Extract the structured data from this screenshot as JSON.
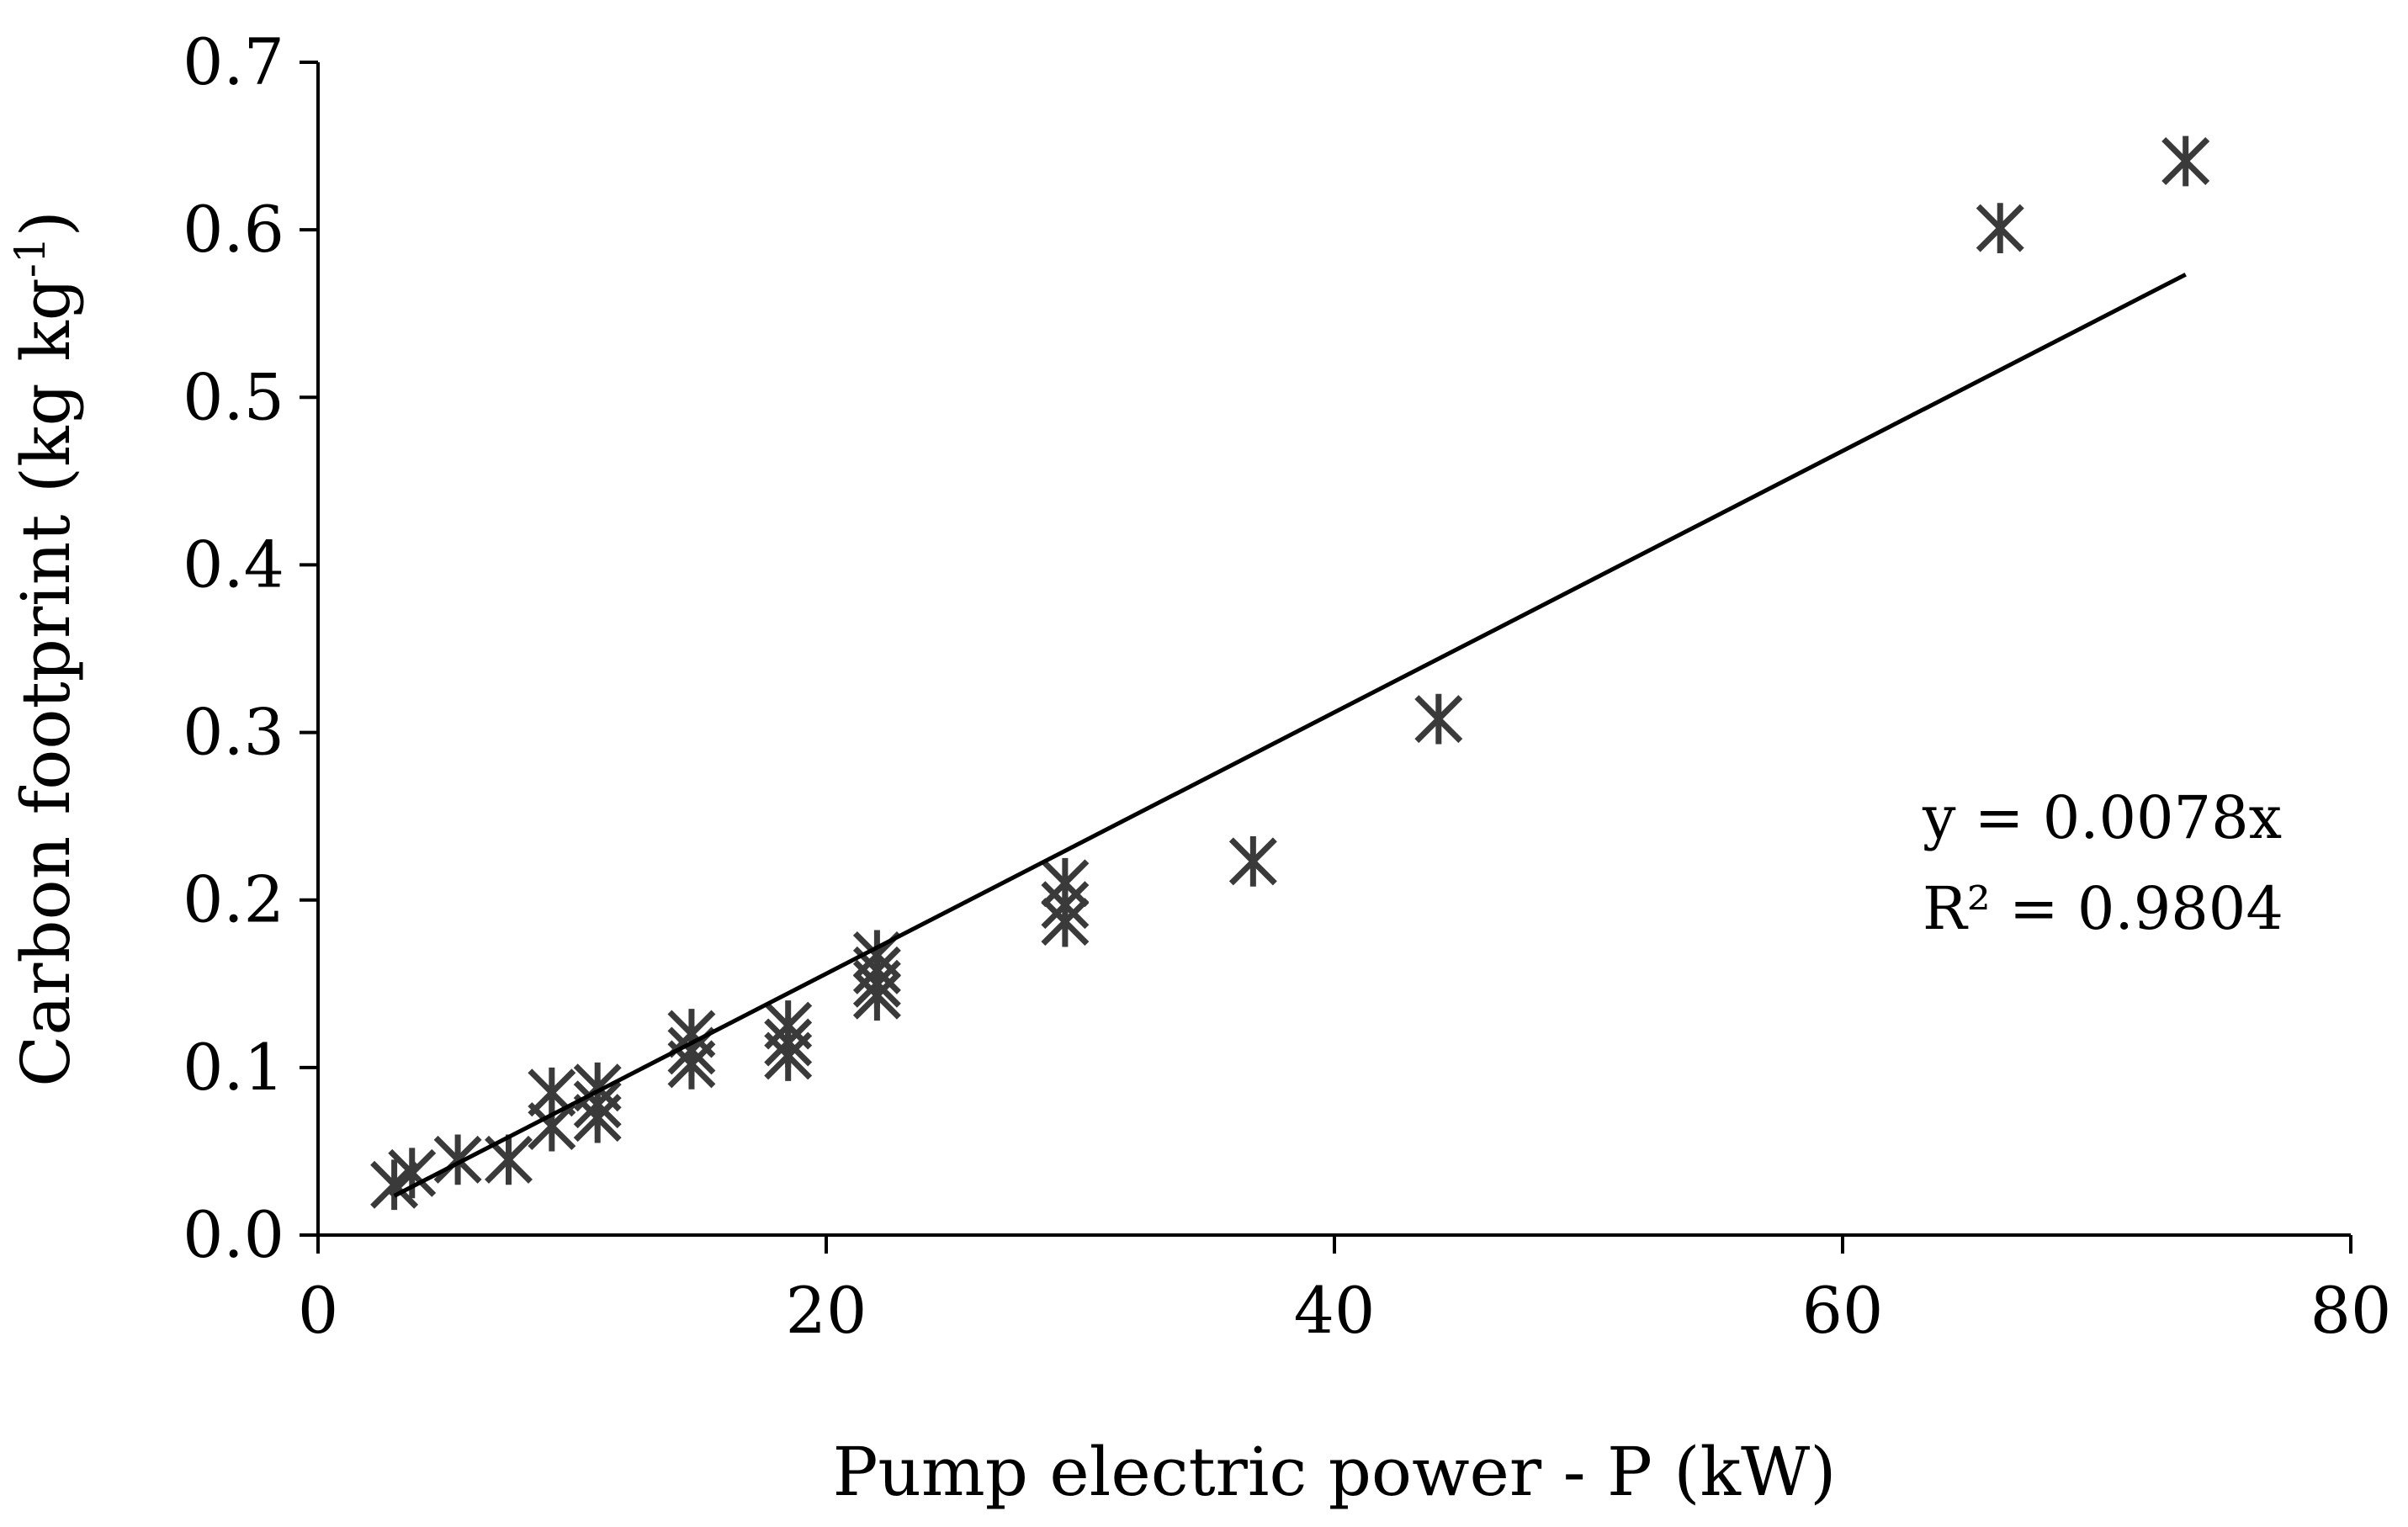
{
  "chart_data": {
    "type": "scatter",
    "title": "",
    "xlabel": "Pump electric power - P (kW)",
    "ylabel": "Carbon footprint (kg kg-1)",
    "ylabel_main": "Carbon footprint (kg kg",
    "ylabel_sup": "-1",
    "ylabel_close": ")",
    "xlim": [
      0,
      80
    ],
    "ylim": [
      0,
      0.7
    ],
    "x_ticks": [
      0,
      20,
      40,
      60,
      80
    ],
    "x_tick_labels": [
      "0",
      "20",
      "40",
      "60",
      "80"
    ],
    "y_ticks": [
      0,
      0.1,
      0.2,
      0.3,
      0.4,
      0.5,
      0.6,
      0.7
    ],
    "y_tick_labels": [
      "0.0",
      "0.1",
      "0.2",
      "0.3",
      "0.4",
      "0.5",
      "0.6",
      "0.7"
    ],
    "grid": false,
    "marker": "asterisk",
    "marker_color": "#3a3a3a",
    "series": [
      {
        "name": "Carbon footprint",
        "points": [
          {
            "x": 3.0,
            "y": 0.03
          },
          {
            "x": 3.7,
            "y": 0.037
          },
          {
            "x": 5.5,
            "y": 0.045
          },
          {
            "x": 7.5,
            "y": 0.045
          },
          {
            "x": 9.2,
            "y": 0.065
          },
          {
            "x": 9.2,
            "y": 0.085
          },
          {
            "x": 11.0,
            "y": 0.07
          },
          {
            "x": 11.0,
            "y": 0.078
          },
          {
            "x": 11.0,
            "y": 0.088
          },
          {
            "x": 14.7,
            "y": 0.102
          },
          {
            "x": 14.7,
            "y": 0.11
          },
          {
            "x": 14.7,
            "y": 0.12
          },
          {
            "x": 18.5,
            "y": 0.107
          },
          {
            "x": 18.5,
            "y": 0.115
          },
          {
            "x": 18.5,
            "y": 0.125
          },
          {
            "x": 22.0,
            "y": 0.143
          },
          {
            "x": 22.0,
            "y": 0.15
          },
          {
            "x": 22.0,
            "y": 0.158
          },
          {
            "x": 22.0,
            "y": 0.167
          },
          {
            "x": 29.4,
            "y": 0.187
          },
          {
            "x": 29.4,
            "y": 0.197
          },
          {
            "x": 29.4,
            "y": 0.21
          },
          {
            "x": 36.8,
            "y": 0.223
          },
          {
            "x": 44.1,
            "y": 0.308
          },
          {
            "x": 66.2,
            "y": 0.601
          },
          {
            "x": 73.5,
            "y": 0.641
          }
        ]
      }
    ],
    "trendline": {
      "slope": 0.0078,
      "x_start": 3.0,
      "x_end": 73.5,
      "equation_label": "y = 0.0078x",
      "r2_label": "R² = 0.9804"
    }
  }
}
